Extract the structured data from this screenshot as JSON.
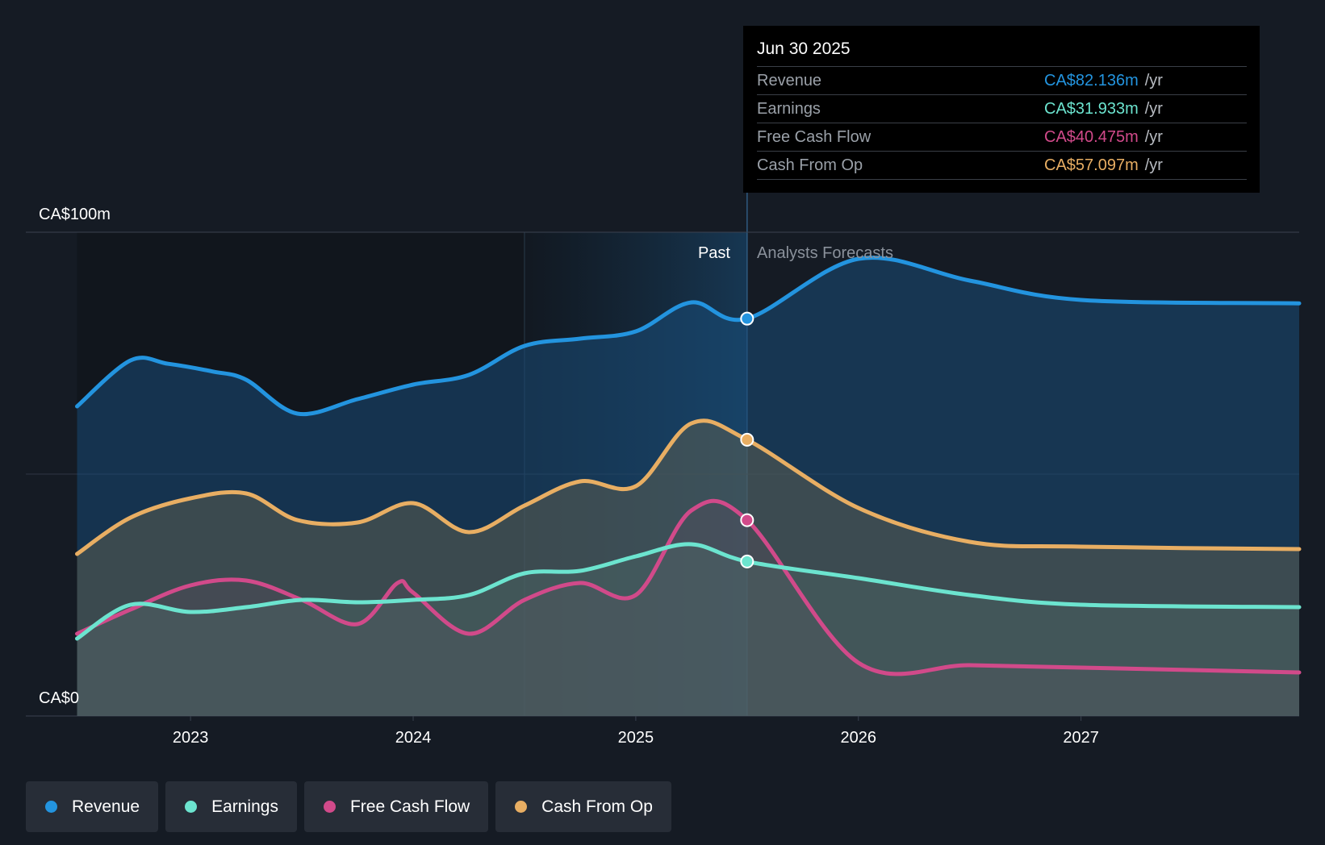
{
  "chart_data": {
    "type": "area",
    "y_axis": {
      "max_label": "CA$100m",
      "min_label": "CA$0",
      "ylim": [
        0,
        100
      ],
      "unit": "CA$m"
    },
    "x_axis": {
      "tick_labels": [
        "2023",
        "2024",
        "2025",
        "2026",
        "2027"
      ],
      "tick_values": [
        2023,
        2024,
        2025,
        2026,
        2027
      ],
      "xlim": [
        2022.26,
        2027.98
      ]
    },
    "past_label": "Past",
    "forecast_label": "Analysts Forecasts",
    "past_highlight_start": 2024.5,
    "divider_x": 2025.5,
    "series": [
      {
        "name": "Revenue",
        "color": "#2394df",
        "points": [
          [
            2022.49,
            64
          ],
          [
            2022.73,
            73.5
          ],
          [
            2022.9,
            72.8
          ],
          [
            2023.1,
            71.2
          ],
          [
            2023.25,
            69.5
          ],
          [
            2023.48,
            62.5
          ],
          [
            2023.75,
            65.5
          ],
          [
            2024.0,
            68.5
          ],
          [
            2024.25,
            70.5
          ],
          [
            2024.5,
            76.5
          ],
          [
            2024.75,
            78
          ],
          [
            2025.0,
            79.5
          ],
          [
            2025.25,
            85.5
          ],
          [
            2025.5,
            82.136
          ],
          [
            2026.0,
            94.5
          ],
          [
            2026.5,
            90
          ],
          [
            2027.0,
            86
          ],
          [
            2027.98,
            85.3
          ]
        ]
      },
      {
        "name": "Earnings",
        "color": "#6ce4cf",
        "points": [
          [
            2022.49,
            16
          ],
          [
            2022.73,
            23
          ],
          [
            2023.0,
            21.5
          ],
          [
            2023.25,
            22.5
          ],
          [
            2023.5,
            24
          ],
          [
            2023.75,
            23.5
          ],
          [
            2024.0,
            24
          ],
          [
            2024.25,
            25
          ],
          [
            2024.5,
            29.5
          ],
          [
            2024.75,
            30
          ],
          [
            2025.0,
            33
          ],
          [
            2025.25,
            35.5
          ],
          [
            2025.5,
            31.933
          ],
          [
            2026.0,
            28.5
          ],
          [
            2026.5,
            25
          ],
          [
            2027.0,
            23
          ],
          [
            2027.98,
            22.5
          ]
        ]
      },
      {
        "name": "Free Cash Flow",
        "color": "#d14a8a",
        "points": [
          [
            2022.49,
            17
          ],
          [
            2022.73,
            22
          ],
          [
            2023.0,
            27
          ],
          [
            2023.25,
            28
          ],
          [
            2023.5,
            24
          ],
          [
            2023.75,
            19
          ],
          [
            2023.93,
            27.5
          ],
          [
            2024.0,
            25.5
          ],
          [
            2024.25,
            17
          ],
          [
            2024.5,
            24
          ],
          [
            2024.75,
            27.5
          ],
          [
            2025.0,
            25
          ],
          [
            2025.25,
            42.5
          ],
          [
            2025.5,
            40.475
          ],
          [
            2026.0,
            11
          ],
          [
            2026.5,
            10.5
          ],
          [
            2027.0,
            10
          ],
          [
            2027.98,
            9
          ]
        ]
      },
      {
        "name": "Cash From Op",
        "color": "#e8ae63",
        "points": [
          [
            2022.49,
            33.5
          ],
          [
            2022.73,
            41
          ],
          [
            2023.0,
            45
          ],
          [
            2023.25,
            46
          ],
          [
            2023.48,
            40.5
          ],
          [
            2023.75,
            40
          ],
          [
            2024.0,
            44
          ],
          [
            2024.25,
            38
          ],
          [
            2024.5,
            43.5
          ],
          [
            2024.75,
            48.5
          ],
          [
            2025.0,
            47.5
          ],
          [
            2025.25,
            60.5
          ],
          [
            2025.5,
            57.097
          ],
          [
            2026.0,
            43
          ],
          [
            2026.5,
            36
          ],
          [
            2027.0,
            35
          ],
          [
            2027.98,
            34.5
          ]
        ]
      }
    ]
  },
  "tooltip": {
    "date": "Jun 30 2025",
    "rows": [
      {
        "label": "Revenue",
        "value": "CA$82.136m",
        "unit": "/yr",
        "color": "#2394df"
      },
      {
        "label": "Earnings",
        "value": "CA$31.933m",
        "unit": "/yr",
        "color": "#6ce4cf"
      },
      {
        "label": "Free Cash Flow",
        "value": "CA$40.475m",
        "unit": "/yr",
        "color": "#d14a8a"
      },
      {
        "label": "Cash From Op",
        "value": "CA$57.097m",
        "unit": "/yr",
        "color": "#e8ae63"
      }
    ]
  },
  "legend": [
    {
      "label": "Revenue",
      "color": "#2394df"
    },
    {
      "label": "Earnings",
      "color": "#6ce4cf"
    },
    {
      "label": "Free Cash Flow",
      "color": "#d14a8a"
    },
    {
      "label": "Cash From Op",
      "color": "#e8ae63"
    }
  ]
}
